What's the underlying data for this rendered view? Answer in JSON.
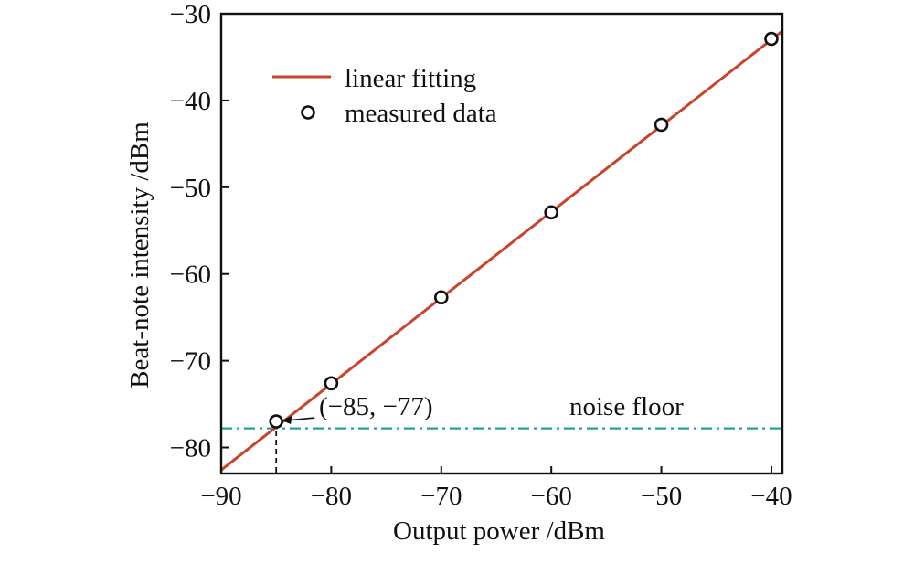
{
  "chart_data": {
    "type": "scatter",
    "xlabel": "Output power /dBm",
    "ylabel": "Beat-note intensity /dBm",
    "xlim": [
      -90,
      -39
    ],
    "ylim": [
      -83,
      -30
    ],
    "x_ticks": [
      -90,
      -80,
      -70,
      -60,
      -50,
      -40
    ],
    "y_ticks": [
      -30,
      -40,
      -50,
      -60,
      -70,
      -80
    ],
    "x_tick_labels": [
      "−90",
      "−80",
      "−70",
      "−60",
      "−50",
      "−40"
    ],
    "y_tick_labels": [
      "−30",
      "−40",
      "−50",
      "−60",
      "−70",
      "−80"
    ],
    "grid": false,
    "legend_position": "top-left",
    "series": [
      {
        "name": "linear fitting",
        "kind": "line",
        "color": "#c8442c",
        "x": [
          -90,
          -39
        ],
        "y": [
          -82.6,
          -32.0
        ]
      },
      {
        "name": "measured data",
        "kind": "scatter",
        "marker": "open-circle",
        "color": "#111111",
        "x": [
          -85,
          -80,
          -70,
          -60,
          -50,
          -40
        ],
        "y": [
          -77,
          -72.6,
          -62.7,
          -52.9,
          -42.8,
          -32.9
        ]
      }
    ],
    "noise_floor": {
      "label": "noise floor",
      "y": -77.8,
      "color": "#2aa197",
      "style": "dash-dot"
    },
    "annotation": {
      "text": "(−85, −77)",
      "x": -85,
      "y": -77
    }
  }
}
